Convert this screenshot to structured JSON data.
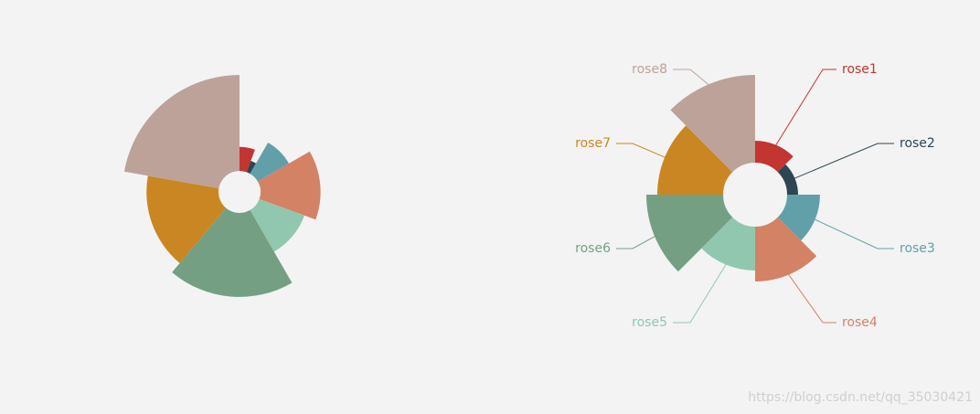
{
  "chart_data": [
    {
      "type": "pie",
      "rose_type": "radius",
      "values": [
        10,
        5,
        15,
        25,
        20,
        35,
        30,
        40
      ],
      "colors": [
        "#c23531",
        "#2f4554",
        "#61a0a8",
        "#d48265",
        "#91c7ae",
        "#749f83",
        "#ca8622",
        "#bda29a"
      ]
    },
    {
      "type": "pie",
      "rose_type": "area",
      "categories": [
        "rose1",
        "rose2",
        "rose3",
        "rose4",
        "rose5",
        "rose6",
        "rose7",
        "rose8"
      ],
      "values": [
        10,
        5,
        15,
        25,
        20,
        35,
        30,
        40
      ],
      "colors": [
        "#c23531",
        "#2f4554",
        "#61a0a8",
        "#d48265",
        "#91c7ae",
        "#749f83",
        "#ca8622",
        "#bda29a"
      ]
    }
  ],
  "watermark": "https://blog.csdn.net/qq_35030421"
}
